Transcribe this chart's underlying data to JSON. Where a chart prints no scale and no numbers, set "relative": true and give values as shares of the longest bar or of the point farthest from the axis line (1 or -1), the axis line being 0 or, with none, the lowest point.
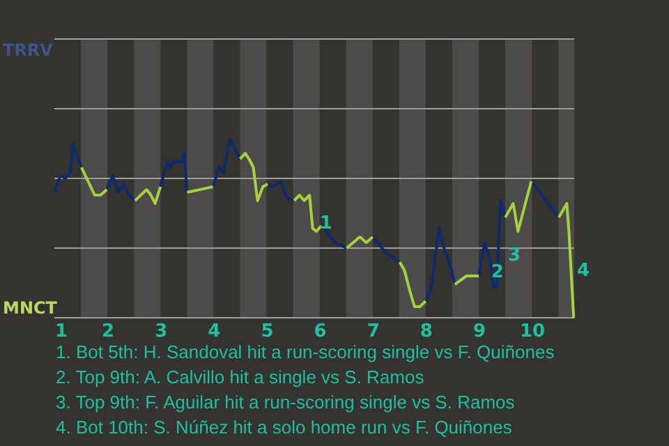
{
  "chart_data": {
    "type": "line",
    "relative": true,
    "x": [
      1.01,
      1.11,
      1.21,
      1.3,
      1.35,
      1.51,
      1.76,
      1.87,
      1.99,
      2.1,
      2.2,
      2.32,
      2.4,
      2.52,
      2.74,
      2.82,
      2.9,
      3.0,
      3.13,
      3.19,
      3.26,
      3.41,
      3.45,
      3.5,
      3.99,
      4.11,
      4.19,
      4.31,
      4.5,
      4.6,
      4.67,
      4.75,
      4.83,
      4.93,
      5.02,
      5.13,
      5.27,
      5.38,
      5.52,
      5.62,
      5.71,
      5.81,
      5.87,
      5.94,
      6.03,
      6.29,
      6.51,
      6.76,
      6.88,
      7.0,
      7.27,
      7.51,
      7.6,
      7.71,
      7.79,
      7.89,
      8.0,
      8.11,
      8.25,
      8.36,
      8.43,
      8.55,
      8.77,
      9.0,
      9.11,
      9.21,
      9.28,
      9.34,
      9.41,
      9.5,
      9.65,
      9.74,
      9.99,
      10.25,
      10.51,
      10.66,
      10.7,
      10.79
    ],
    "series": [
      {
        "color": "#0d2a6e",
        "values": [
          -0.1,
          0.02,
          0,
          0.04,
          0.24,
          0.08,
          null,
          null,
          -0.08,
          0.02,
          -0.1,
          -0.04,
          -0.12,
          -0.16,
          null,
          null,
          null,
          -0.06,
          0.12,
          0.08,
          0.12,
          0.12,
          0.18,
          -0.1,
          -0.06,
          0.08,
          0.04,
          0.28,
          0.14,
          null,
          null,
          null,
          null,
          null,
          -0.04,
          -0.06,
          -0.02,
          -0.14,
          -0.16,
          null,
          null,
          null,
          null,
          null,
          -0.34,
          -0.46,
          -0.5,
          null,
          null,
          -0.42,
          -0.54,
          -0.6,
          null,
          null,
          null,
          null,
          -0.88,
          -0.78,
          -0.36,
          -0.52,
          -0.58,
          -0.76,
          null,
          -0.7,
          -0.46,
          -0.58,
          -0.78,
          -0.78,
          -0.16,
          -0.28,
          null,
          null,
          -0.02,
          -0.15,
          -0.28,
          null,
          null,
          null
        ]
      },
      {
        "color": "#a6d13f",
        "values": [
          null,
          null,
          null,
          null,
          null,
          0.08,
          -0.12,
          -0.12,
          -0.08,
          null,
          null,
          null,
          null,
          -0.16,
          -0.08,
          -0.12,
          -0.18,
          -0.06,
          null,
          null,
          null,
          null,
          null,
          -0.1,
          -0.06,
          null,
          null,
          null,
          0.14,
          0.18,
          0.14,
          0.08,
          -0.16,
          -0.06,
          -0.04,
          null,
          null,
          null,
          -0.16,
          -0.12,
          -0.16,
          -0.12,
          -0.36,
          -0.38,
          -0.34,
          null,
          -0.5,
          -0.42,
          -0.46,
          -0.42,
          null,
          -0.6,
          -0.66,
          -0.82,
          -0.92,
          -0.92,
          -0.88,
          null,
          null,
          null,
          null,
          -0.76,
          -0.7,
          -0.7,
          null,
          null,
          null,
          null,
          null,
          -0.28,
          -0.18,
          -0.38,
          -0.02,
          null,
          -0.28,
          -0.18,
          -0.38,
          -1
        ]
      }
    ],
    "xlim": [
      1,
      10.8
    ],
    "xticks": [
      1,
      2,
      3,
      4,
      5,
      6,
      7,
      8,
      9,
      10
    ],
    "ref_lines": [
      {
        "axis": "y",
        "value": 1,
        "color": "#a09e9b"
      },
      {
        "axis": "y",
        "value": 0.5,
        "color": "#a09e9b"
      },
      {
        "axis": "y",
        "value": 0,
        "color": "#a09e9b"
      },
      {
        "axis": "y",
        "value": -0.5,
        "color": "#a09e9b"
      },
      {
        "axis": "y",
        "value": -1,
        "color": "#a09e9b"
      }
    ],
    "bands": [
      {
        "axis": "x",
        "from": 1.5,
        "to": 2,
        "color": "#4d4b49"
      },
      {
        "axis": "x",
        "from": 2.5,
        "to": 3,
        "color": "#4d4b49"
      },
      {
        "axis": "x",
        "from": 3.5,
        "to": 4,
        "color": "#4d4b49"
      },
      {
        "axis": "x",
        "from": 4.5,
        "to": 5,
        "color": "#4d4b49"
      },
      {
        "axis": "x",
        "from": 5.5,
        "to": 6,
        "color": "#4d4b49"
      },
      {
        "axis": "x",
        "from": 6.5,
        "to": 7,
        "color": "#4d4b49"
      },
      {
        "axis": "x",
        "from": 7.5,
        "to": 8,
        "color": "#4d4b49"
      },
      {
        "axis": "x",
        "from": 8.5,
        "to": 9,
        "color": "#4d4b49"
      },
      {
        "axis": "x",
        "from": 9.5,
        "to": 10,
        "color": "#4d4b49"
      },
      {
        "axis": "x",
        "from": 10.5,
        "to": 10.8,
        "color": "#4d4b49"
      }
    ],
    "annotations": [
      "TRRV",
      "MNCT",
      {
        "text": "1",
        "x": 5.95,
        "y": -0.32
      },
      {
        "text": "2",
        "x": 9.18,
        "y": -0.67
      },
      {
        "text": "3",
        "x": 9.5,
        "y": -0.55
      },
      {
        "text": "4",
        "x": 10.8,
        "y": -0.66
      },
      "1. Bot 5th: H. Sandoval hit a run-scoring single vs F. Quiñones",
      "2. Top 9th: A. Calvillo hit a single vs S. Ramos",
      "3. Top 9th: F. Aguilar hit a run-scoring single vs S. Ramos",
      "4. Bot 10th: S. Núñez hit a solo home run vs F. Quiñones"
    ]
  }
}
